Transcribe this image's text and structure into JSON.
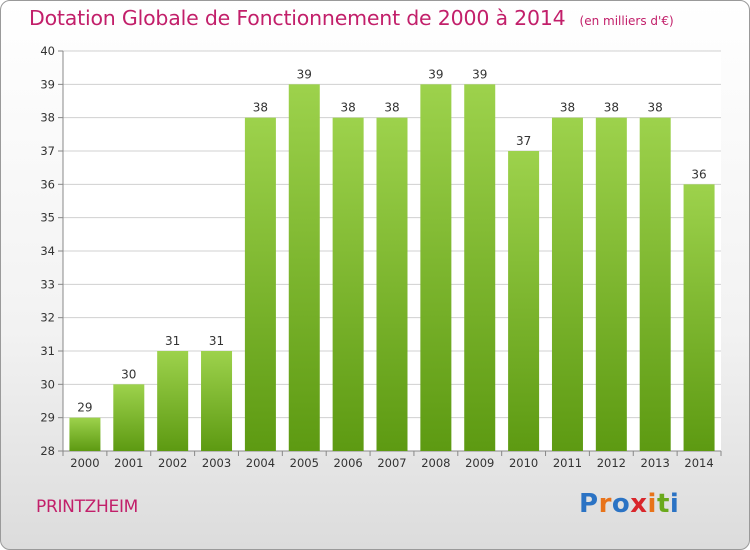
{
  "header": {
    "title": "Dotation Globale de Fonctionnement de 2000 à 2014",
    "unit": "(en milliers d'€)"
  },
  "footer": {
    "commune": "PRINTZHEIM",
    "logo": "Proxiti"
  },
  "colors": {
    "accent": "#c21f6a",
    "bar_light": "#9dd24c",
    "bar_dark": "#5d9a12",
    "logo_letters": [
      "#2b73c4",
      "#e8731a",
      "#2b73c4",
      "#d9262b",
      "#e8731a",
      "#6aa91c",
      "#2b73c4"
    ]
  },
  "chart_data": {
    "type": "bar",
    "categories": [
      "2000",
      "2001",
      "2002",
      "2003",
      "2004",
      "2005",
      "2006",
      "2007",
      "2008",
      "2009",
      "2010",
      "2011",
      "2012",
      "2013",
      "2014"
    ],
    "values": [
      29,
      30,
      31,
      31,
      38,
      39,
      38,
      38,
      39,
      39,
      37,
      38,
      38,
      38,
      36
    ],
    "ylim": [
      28,
      40
    ],
    "yticks": [
      28,
      29,
      30,
      31,
      32,
      33,
      34,
      35,
      36,
      37,
      38,
      39,
      40
    ],
    "grid": true,
    "title": "Dotation Globale de Fonctionnement de 2000 à 2014",
    "xlabel": "",
    "ylabel": ""
  }
}
